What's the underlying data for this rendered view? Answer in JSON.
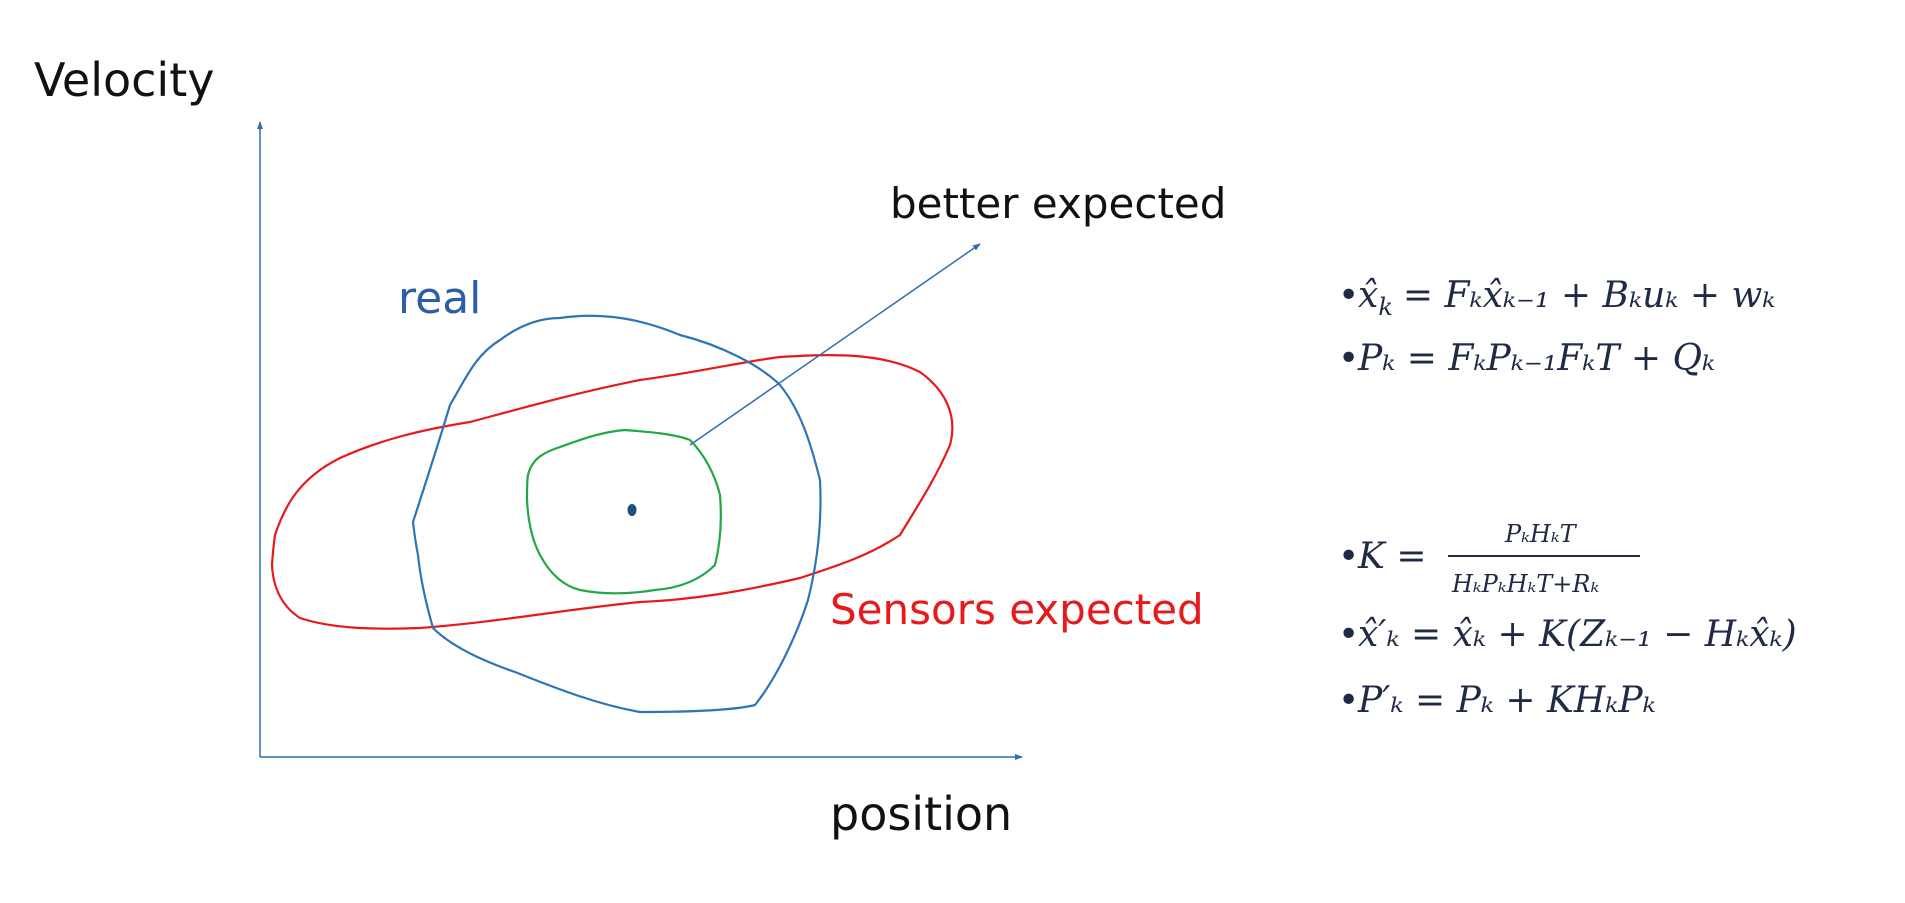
{
  "labels": {
    "y_axis": "Velocity",
    "x_axis": "position",
    "real": "real",
    "better_expected": "better expected",
    "sensors_expected": "Sensors expected"
  },
  "colors": {
    "axis": "#2e6db4",
    "real": "#2e75b6",
    "sensors": "#e8191b",
    "better": "#21a845",
    "center_dot": "#1f4e79",
    "real_label": "#2a5fa8",
    "sensors_label": "#e8191b",
    "equation": "#1f2a44"
  },
  "equations": {
    "predict_state": {
      "bullet": "•",
      "lhs": "x̂",
      "lhs_sub": "k",
      "rhs": "= Fₖx̂ₖ₋₁ + Bₖuₖ + wₖ"
    },
    "predict_cov": {
      "bullet": "•",
      "text": "Pₖ = FₖPₖ₋₁FₖT + Qₖ"
    },
    "gain": {
      "bullet": "•",
      "lhs": "K =",
      "numerator": "PₖHₖT",
      "denominator": "HₖPₖHₖT+Rₖ"
    },
    "update_state": {
      "bullet": "•",
      "text": "x̂′ₖ = x̂ₖ + K(Zₖ₋₁ − Hₖx̂ₖ)"
    },
    "update_cov": {
      "bullet": "•",
      "text": "P′ₖ = Pₖ + KHₖPₖ"
    }
  }
}
